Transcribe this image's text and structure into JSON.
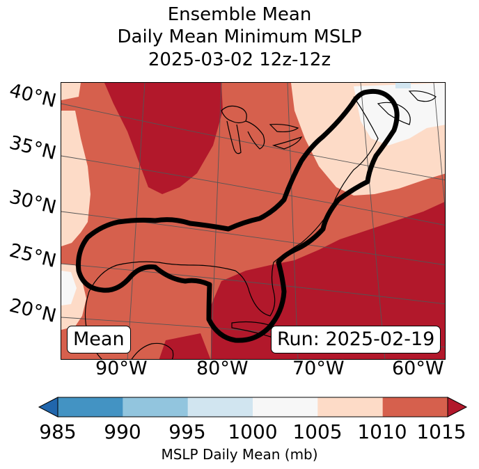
{
  "title": {
    "line1": "Ensemble Mean",
    "line2": "Daily Mean Minimum MSLP",
    "line3": "2025-03-02 12z-12z"
  },
  "map": {
    "lat_labels": [
      "40°N",
      "35°N",
      "30°N",
      "25°N",
      "20°N"
    ],
    "lon_labels": [
      "90°W",
      "80°W",
      "70°W",
      "60°W"
    ],
    "mean_label": "Mean",
    "run_label": "Run: 2025-02-19",
    "colors": {
      "lt1010": "#fddbc7",
      "lt1015": "#d6604d",
      "ge1015": "#b2182b",
      "lt1005": "#f7f7f7",
      "lt1000": "#d1e5f0"
    }
  },
  "colorbar": {
    "ticks": [
      "985",
      "990",
      "995",
      "1000",
      "1005",
      "1010",
      "1015"
    ],
    "colors": [
      "#2166ac",
      "#4393c3",
      "#92c5de",
      "#d1e5f0",
      "#f7f7f7",
      "#fddbc7",
      "#d6604d",
      "#b2182b"
    ],
    "label": "MSLP Daily Mean (mb)"
  }
}
